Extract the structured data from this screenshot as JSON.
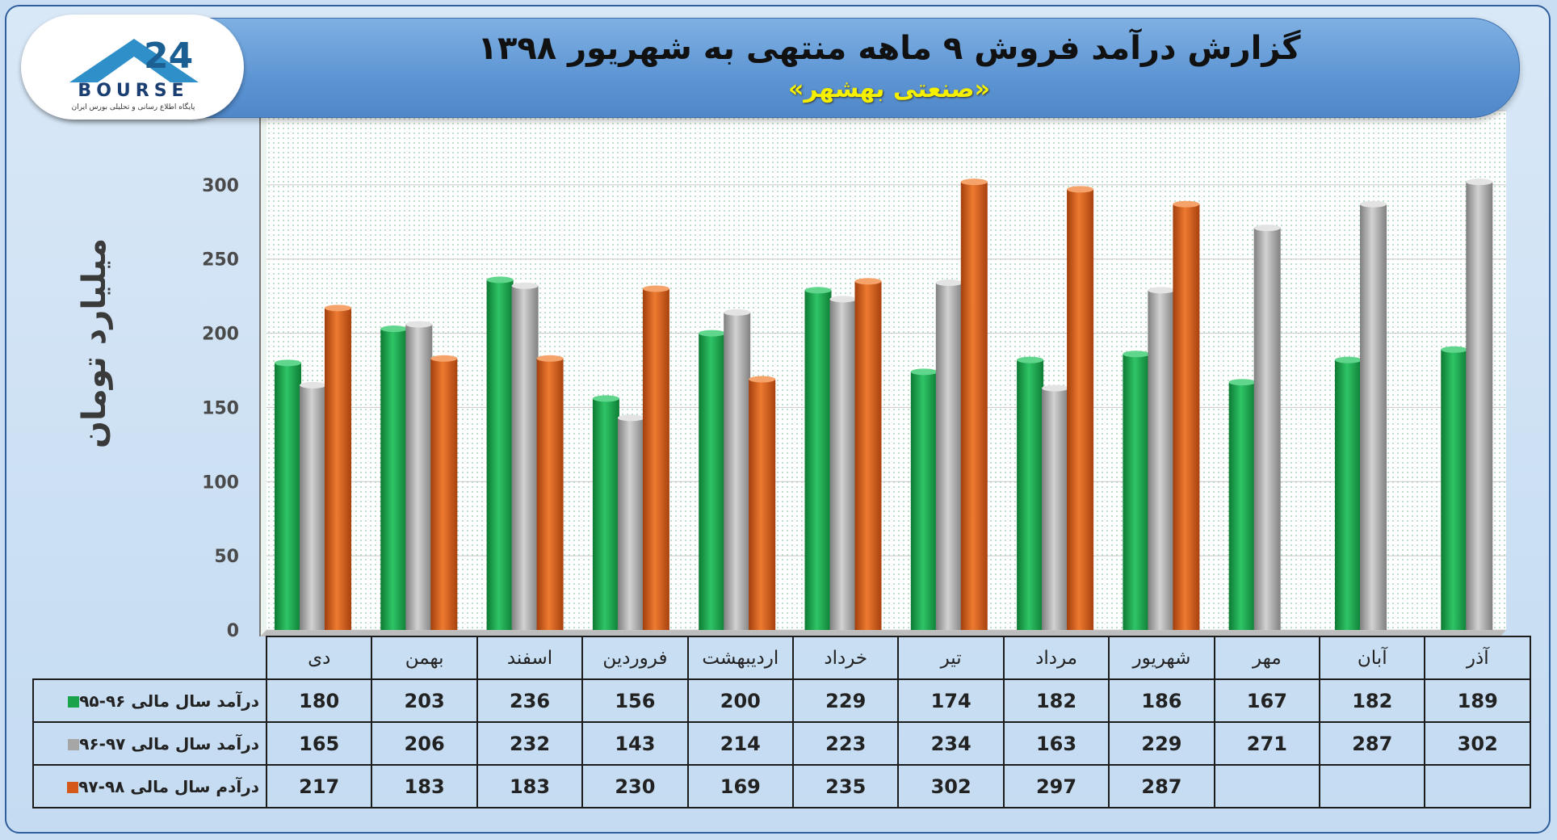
{
  "title": "گزارش درآمد فروش ۹ ماهه منتهی به شهریور ۱۳۹۸",
  "subtitle": "«صنعتی بهشهر»",
  "logo": {
    "text": "BOURSE",
    "number": "24",
    "subtext": "پایگاه اطلاع رسانی و تحلیلی بورس ایران"
  },
  "colors": {
    "s1": "#1aa34a",
    "s2": "#a6a6a6",
    "s3": "#d3581a"
  },
  "chart_data": {
    "type": "bar",
    "title": "گزارش درآمد فروش ۹ ماهه منتهی به شهریور ۱۳۹۸",
    "ylabel": "میلیارد تومان",
    "xlabel": "",
    "ylim": [
      0,
      350
    ],
    "yticks": [
      "0",
      "50",
      "100",
      "150",
      "200",
      "250",
      "300",
      "350"
    ],
    "grid": true,
    "categories": [
      "دی",
      "بهمن",
      "اسفند",
      "فروردین",
      "اردیبهشت",
      "خرداد",
      "تیر",
      "مرداد",
      "شهریور",
      "مهر",
      "آبان",
      "آذر"
    ],
    "series": [
      {
        "name": "درآمد سال مالی ۹۶-۹۵",
        "color": "#1aa34a",
        "values": [
          180,
          203,
          236,
          156,
          200,
          229,
          174,
          182,
          186,
          167,
          182,
          189
        ]
      },
      {
        "name": "درآمد سال مالی ۹۷-۹۶",
        "color": "#a6a6a6",
        "values": [
          165,
          206,
          232,
          143,
          214,
          223,
          234,
          163,
          229,
          271,
          287,
          302
        ]
      },
      {
        "name": "درآدم سال مالی ۹۸-۹۷",
        "color": "#d3581a",
        "values": [
          217,
          183,
          183,
          230,
          169,
          235,
          302,
          297,
          287,
          null,
          null,
          null
        ]
      }
    ],
    "table": {
      "rows": [
        [
          "180",
          "203",
          "236",
          "156",
          "200",
          "229",
          "174",
          "182",
          "186",
          "167",
          "182",
          "189"
        ],
        [
          "165",
          "206",
          "232",
          "143",
          "214",
          "223",
          "234",
          "163",
          "229",
          "271",
          "287",
          "302"
        ],
        [
          "217",
          "183",
          "183",
          "230",
          "169",
          "235",
          "302",
          "297",
          "287",
          "",
          "",
          ""
        ]
      ]
    }
  }
}
